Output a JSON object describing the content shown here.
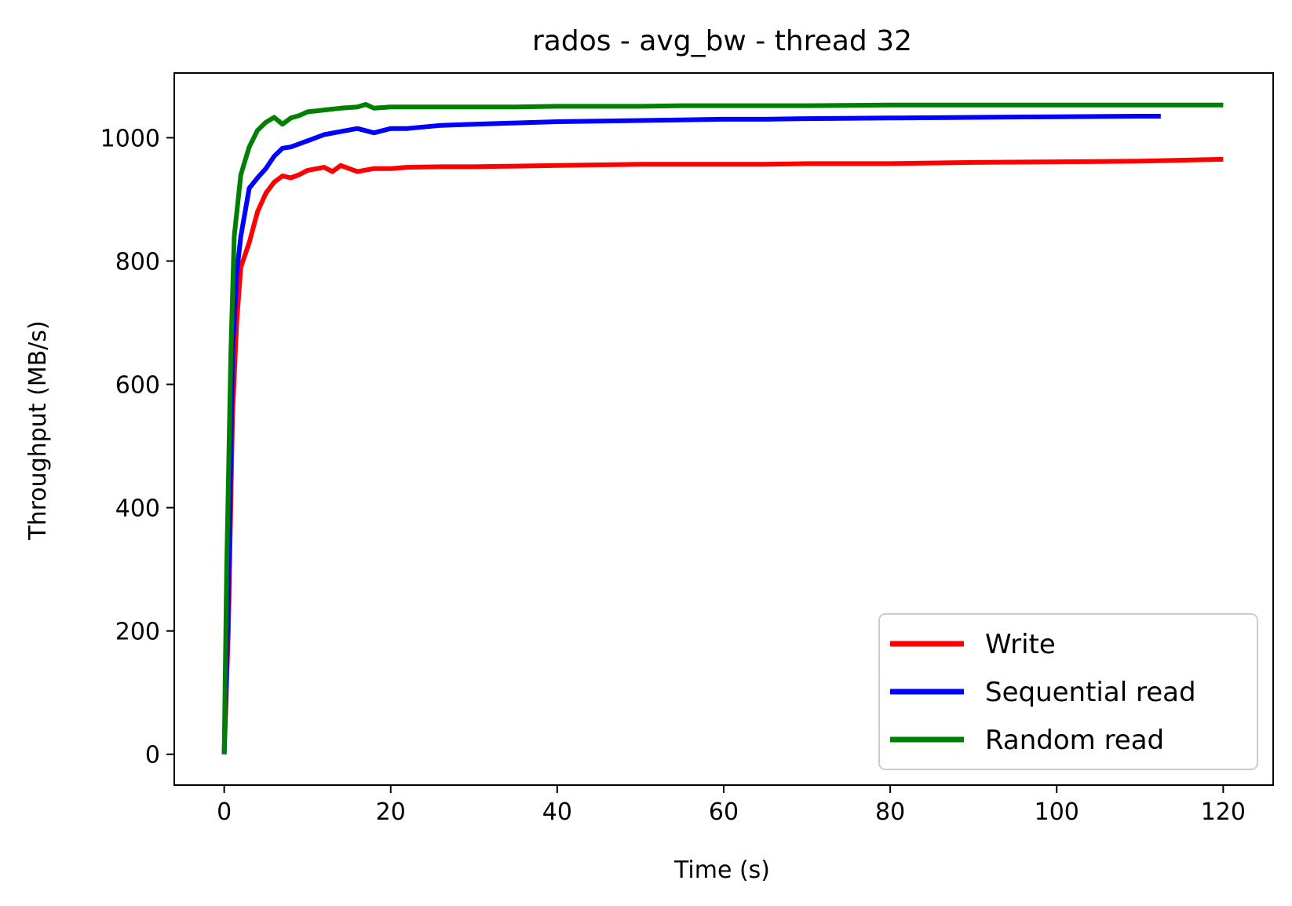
{
  "chart_data": {
    "type": "line",
    "title": "rados - avg_bw - thread 32",
    "xlabel": "Time (s)",
    "ylabel": "Throughput (MB/s)",
    "xlim": [
      -6,
      126
    ],
    "ylim": [
      -50,
      1105
    ],
    "xticks": [
      0,
      20,
      40,
      60,
      80,
      100,
      120
    ],
    "yticks": [
      0,
      200,
      400,
      600,
      800,
      1000
    ],
    "grid": false,
    "legend_position": "lower-right",
    "series": [
      {
        "name": "Write",
        "color": "#ff0000",
        "x": [
          0,
          0.5,
          1,
          1.5,
          2,
          3,
          4,
          5,
          6,
          7,
          8,
          9,
          10,
          12,
          13,
          14,
          16,
          18,
          20,
          22,
          26,
          30,
          35,
          40,
          45,
          50,
          55,
          60,
          65,
          70,
          80,
          90,
          100,
          110,
          120
        ],
        "y": [
          0,
          200,
          550,
          700,
          790,
          830,
          880,
          910,
          928,
          938,
          935,
          940,
          947,
          952,
          945,
          955,
          945,
          950,
          950,
          952,
          953,
          953,
          954,
          955,
          956,
          957,
          957,
          957,
          957,
          958,
          958,
          960,
          961,
          962,
          965
        ]
      },
      {
        "name": "Sequential read",
        "color": "#0000ff",
        "x": [
          0,
          0.5,
          1,
          1.5,
          2,
          3,
          4,
          5,
          6,
          7,
          8,
          9,
          10,
          12,
          14,
          16,
          18,
          20,
          22,
          26,
          30,
          35,
          40,
          45,
          50,
          55,
          60,
          65,
          70,
          80,
          90,
          100,
          110,
          112.5
        ],
        "y": [
          0,
          250,
          650,
          780,
          840,
          918,
          935,
          950,
          970,
          983,
          985,
          990,
          995,
          1005,
          1010,
          1015,
          1008,
          1015,
          1015,
          1020,
          1022,
          1024,
          1026,
          1027,
          1028,
          1029,
          1030,
          1030,
          1031,
          1032,
          1033,
          1034,
          1035,
          1035
        ]
      },
      {
        "name": "Random read",
        "color": "#008000",
        "x": [
          0,
          0.3,
          0.8,
          1.2,
          2,
          3,
          4,
          5,
          6,
          7,
          8,
          9,
          10,
          12,
          14,
          16,
          17,
          18,
          20,
          25,
          30,
          35,
          40,
          45,
          50,
          55,
          60,
          65,
          70,
          80,
          90,
          100,
          110,
          120
        ],
        "y": [
          0,
          300,
          650,
          840,
          940,
          985,
          1012,
          1025,
          1033,
          1022,
          1032,
          1036,
          1042,
          1045,
          1048,
          1050,
          1054,
          1048,
          1050,
          1050,
          1050,
          1050,
          1051,
          1051,
          1051,
          1052,
          1052,
          1052,
          1052,
          1053,
          1053,
          1053,
          1053,
          1053
        ]
      }
    ]
  }
}
